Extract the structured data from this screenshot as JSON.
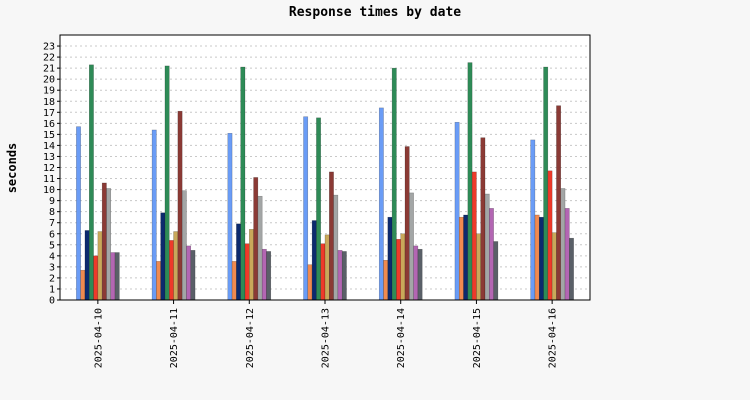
{
  "chart_data": {
    "type": "bar",
    "title": "Response times by date",
    "xlabel": "",
    "ylabel": "seconds",
    "ylim": [
      0,
      24
    ],
    "yticks": [
      0,
      1,
      2,
      3,
      4,
      5,
      6,
      7,
      8,
      9,
      10,
      11,
      12,
      13,
      14,
      15,
      16,
      17,
      18,
      19,
      20,
      21,
      22,
      23
    ],
    "grid": true,
    "categories": [
      "2025-04-10",
      "2025-04-11",
      "2025-04-12",
      "2025-04-13",
      "2025-04-14",
      "2025-04-15",
      "2025-04-16"
    ],
    "series": [
      {
        "color": "#6a9cf6",
        "values": [
          15.7,
          15.4,
          15.1,
          16.6,
          17.4,
          16.1,
          14.5
        ]
      },
      {
        "color": "#f08a50",
        "values": [
          2.7,
          3.5,
          3.5,
          3.2,
          3.6,
          7.5,
          7.7
        ]
      },
      {
        "color": "#0c2a6e",
        "values": [
          6.3,
          7.9,
          6.9,
          7.2,
          7.5,
          7.7,
          7.5
        ]
      },
      {
        "color": "#2e8b57",
        "values": [
          21.3,
          21.2,
          21.1,
          16.5,
          21.0,
          21.5,
          21.1
        ]
      },
      {
        "color": "#ee3a2a",
        "values": [
          4.0,
          5.4,
          5.1,
          5.1,
          5.5,
          11.6,
          11.7
        ]
      },
      {
        "color": "#c9a85a",
        "values": [
          6.2,
          6.2,
          6.4,
          5.9,
          6.0,
          6.0,
          6.1
        ]
      },
      {
        "color": "#8b3a35",
        "values": [
          10.6,
          17.1,
          11.1,
          11.6,
          13.9,
          14.7,
          17.6
        ]
      },
      {
        "color": "#a3a6a6",
        "values": [
          10.1,
          9.9,
          9.4,
          9.5,
          9.7,
          9.6,
          10.1
        ]
      },
      {
        "color": "#b366b3",
        "values": [
          4.3,
          4.9,
          4.6,
          4.5,
          4.9,
          8.3,
          8.3
        ]
      },
      {
        "color": "#5a6068",
        "values": [
          4.3,
          4.5,
          4.4,
          4.4,
          4.6,
          5.3,
          5.6
        ]
      }
    ]
  }
}
